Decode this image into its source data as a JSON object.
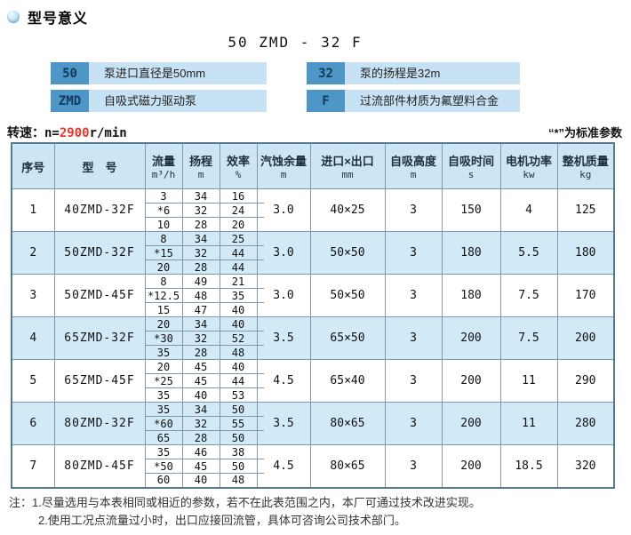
{
  "colors": {
    "accent_dark_blue": "#4e96c6",
    "legend_strip_blue": "#c7e2f4",
    "table_band_blue": "#d2e9f8",
    "table_header_blue": "#cde6f6",
    "grid_border": "#7e99ab",
    "highlight_red": "#e8372c"
  },
  "header": {
    "section_title": "型号意义",
    "model_code": "50 ZMD - 32 F"
  },
  "legend": {
    "items": [
      {
        "code": "50",
        "desc": "泵进口直径是50mm"
      },
      {
        "code": "32",
        "desc": "泵的扬程是32m"
      },
      {
        "code": "ZMD",
        "desc": "自吸式磁力驱动泵"
      },
      {
        "code": "F",
        "desc": "过流部件材质为氟塑料合金"
      }
    ]
  },
  "speed_line": {
    "label": "转速：",
    "pre": "n=",
    "value": "2900",
    "unit": "r/min",
    "std_note": "“*”为标准参数"
  },
  "table": {
    "headers": [
      {
        "label": "序号",
        "unit": ""
      },
      {
        "label": "型　号",
        "unit": ""
      },
      {
        "label": "流量",
        "unit": "m³/h"
      },
      {
        "label": "扬程",
        "unit": "m"
      },
      {
        "label": "效率",
        "unit": "%"
      },
      {
        "label": "汽蚀余量",
        "unit": "m"
      },
      {
        "label": "进口×出口",
        "unit": "mm"
      },
      {
        "label": "自吸高度",
        "unit": "m"
      },
      {
        "label": "自吸时间",
        "unit": "s"
      },
      {
        "label": "电机功率",
        "unit": "kw"
      },
      {
        "label": "整机质量",
        "unit": "kg"
      }
    ],
    "rows": [
      {
        "seq": "1",
        "model": "40ZMD-32F",
        "flow": [
          "3",
          "*6",
          "10"
        ],
        "head": [
          "34",
          "32",
          "28"
        ],
        "eff": [
          "16",
          "24",
          "20"
        ],
        "npsh": "3.0",
        "ports": "40×25",
        "suction_height": "3",
        "suction_time": "150",
        "power": "4",
        "weight": "125"
      },
      {
        "seq": "2",
        "model": "50ZMD-32F",
        "flow": [
          "8",
          "*15",
          "20"
        ],
        "head": [
          "34",
          "32",
          "28"
        ],
        "eff": [
          "25",
          "44",
          "44"
        ],
        "npsh": "3.0",
        "ports": "50×50",
        "suction_height": "3",
        "suction_time": "180",
        "power": "5.5",
        "weight": "180"
      },
      {
        "seq": "3",
        "model": "50ZMD-45F",
        "flow": [
          "8",
          "*12.5",
          "15"
        ],
        "head": [
          "49",
          "48",
          "47"
        ],
        "eff": [
          "21",
          "35",
          "40"
        ],
        "npsh": "3.0",
        "ports": "50×50",
        "suction_height": "3",
        "suction_time": "180",
        "power": "7.5",
        "weight": "170"
      },
      {
        "seq": "4",
        "model": "65ZMD-32F",
        "flow": [
          "20",
          "*30",
          "35"
        ],
        "head": [
          "34",
          "32",
          "28"
        ],
        "eff": [
          "40",
          "52",
          "48"
        ],
        "npsh": "3.5",
        "ports": "65×50",
        "suction_height": "3",
        "suction_time": "200",
        "power": "7.5",
        "weight": "200"
      },
      {
        "seq": "5",
        "model": "65ZMD-45F",
        "flow": [
          "20",
          "*25",
          "35"
        ],
        "head": [
          "45",
          "45",
          "40"
        ],
        "eff": [
          "40",
          "44",
          "53"
        ],
        "npsh": "4.5",
        "ports": "65×40",
        "suction_height": "3",
        "suction_time": "200",
        "power": "11",
        "weight": "290"
      },
      {
        "seq": "6",
        "model": "80ZMD-32F",
        "flow": [
          "35",
          "*60",
          "65"
        ],
        "head": [
          "34",
          "32",
          "28"
        ],
        "eff": [
          "50",
          "55",
          "50"
        ],
        "npsh": "3.5",
        "ports": "80×65",
        "suction_height": "3",
        "suction_time": "200",
        "power": "11",
        "weight": "280"
      },
      {
        "seq": "7",
        "model": "80ZMD-45F",
        "flow": [
          "35",
          "*50",
          "60"
        ],
        "head": [
          "46",
          "45",
          "40"
        ],
        "eff": [
          "38",
          "50",
          "48"
        ],
        "npsh": "4.5",
        "ports": "80×65",
        "suction_height": "3",
        "suction_time": "200",
        "power": "18.5",
        "weight": "320"
      }
    ]
  },
  "notes": {
    "label": "注：",
    "lines": [
      "1.尽量选用与本表相同或相近的参数，若不在此表范围之内，本厂可通过技术改进实现。",
      "2.使用工况点流量过小时，出口应接回流管，具体可咨询公司技术部门。"
    ]
  }
}
